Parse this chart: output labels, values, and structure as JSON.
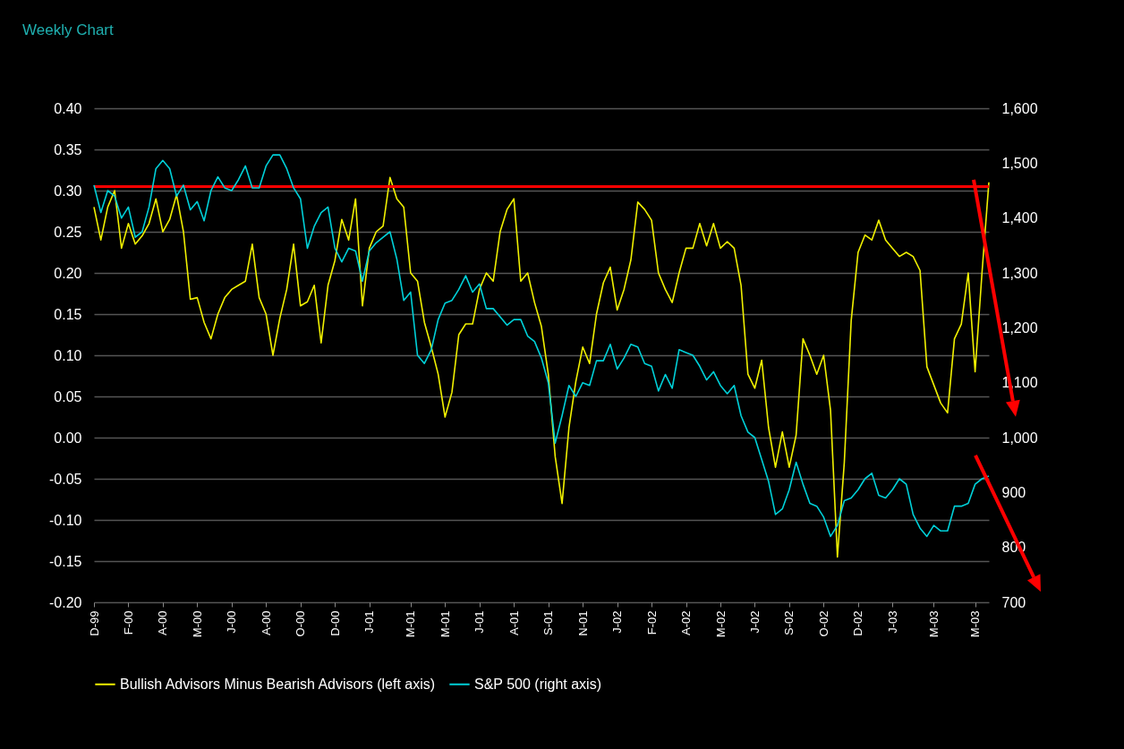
{
  "chart_data": {
    "type": "line",
    "title": "Weekly Chart",
    "categories": [
      "D-99",
      null,
      null,
      null,
      null,
      "F-00",
      null,
      null,
      null,
      null,
      "A-00",
      null,
      null,
      null,
      null,
      "M-00",
      null,
      null,
      null,
      null,
      "J-00",
      null,
      null,
      null,
      null,
      "A-00",
      null,
      null,
      null,
      null,
      "O-00",
      null,
      null,
      null,
      null,
      "D-00",
      null,
      null,
      null,
      null,
      "J-01",
      null,
      null,
      null,
      null,
      null,
      "M-01",
      null,
      null,
      null,
      null,
      "M-01",
      null,
      null,
      null,
      null,
      "J-01",
      null,
      null,
      null,
      null,
      "A-01",
      null,
      null,
      null,
      null,
      "S-01",
      null,
      null,
      null,
      null,
      "N-01",
      null,
      null,
      null,
      null,
      "J-02",
      null,
      null,
      null,
      null,
      "F-02",
      null,
      null,
      null,
      null,
      "A-02",
      null,
      null,
      null,
      null,
      "M-02",
      null,
      null,
      null,
      null,
      "J-02",
      null,
      null,
      null,
      null,
      "S-02",
      null,
      null,
      null,
      null,
      "O-02",
      null,
      null,
      null,
      null,
      "D-02",
      null,
      null,
      null,
      null,
      "J-03",
      null,
      null,
      null,
      null,
      null,
      "M-03",
      null,
      null,
      null,
      null,
      null,
      "M-03",
      null,
      null
    ],
    "series": [
      {
        "name": "Bullish Advisors Minus Bearish Advisors (left axis)",
        "color": "#f0f000",
        "values": [
          0.28,
          0.24,
          0.28,
          0.3,
          0.23,
          0.26,
          0.235,
          0.245,
          0.26,
          0.29,
          0.25,
          0.265,
          0.295,
          0.25,
          0.168,
          0.17,
          0.14,
          0.12,
          0.15,
          0.17,
          0.18,
          0.185,
          0.19,
          0.235,
          0.17,
          0.15,
          0.1,
          0.145,
          0.18,
          0.235,
          0.16,
          0.165,
          0.185,
          0.115,
          0.185,
          0.215,
          0.265,
          0.24,
          0.29,
          0.16,
          0.23,
          0.25,
          0.257,
          0.316,
          0.29,
          0.28,
          0.2,
          0.19,
          0.14,
          0.11,
          0.077,
          0.025,
          0.055,
          0.125,
          0.138,
          0.138,
          0.18,
          0.2,
          0.19,
          0.25,
          0.277,
          0.29,
          0.19,
          0.2,
          0.164,
          0.135,
          0.077,
          -0.023,
          -0.08,
          0.012,
          0.068,
          0.11,
          0.09,
          0.15,
          0.188,
          0.207,
          0.155,
          0.18,
          0.216,
          0.286,
          0.277,
          0.264,
          0.2,
          0.18,
          0.164,
          0.2,
          0.23,
          0.23,
          0.26,
          0.233,
          0.26,
          0.23,
          0.238,
          0.23,
          0.185,
          0.077,
          0.06,
          0.094,
          0.012,
          -0.036,
          0.007,
          -0.036,
          0.003,
          0.12,
          0.1,
          0.077,
          0.1,
          0.033,
          -0.145,
          -0.03,
          0.142,
          0.225,
          0.246,
          0.24,
          0.264,
          0.24,
          0.23,
          0.22,
          0.225,
          0.22,
          0.203,
          0.086,
          0.064,
          0.042,
          0.03,
          0.12,
          0.138,
          0.2,
          0.08,
          0.2,
          0.31
        ]
      },
      {
        "name": "S&P 500 (right axis)",
        "color": "#00d0d8",
        "axis": "y2",
        "values": [
          1460,
          1410,
          1450,
          1440,
          1400,
          1420,
          1365,
          1375,
          1420,
          1490,
          1505,
          1490,
          1440,
          1460,
          1415,
          1430,
          1395,
          1450,
          1475,
          1455,
          1450,
          1470,
          1495,
          1455,
          1455,
          1495,
          1515,
          1515,
          1490,
          1455,
          1435,
          1345,
          1385,
          1410,
          1420,
          1345,
          1320,
          1345,
          1340,
          1285,
          1340,
          1355,
          1365,
          1375,
          1325,
          1250,
          1265,
          1150,
          1135,
          1160,
          1215,
          1245,
          1250,
          1270,
          1295,
          1265,
          1280,
          1235,
          1235,
          1220,
          1205,
          1215,
          1215,
          1185,
          1175,
          1145,
          1100,
          990,
          1040,
          1095,
          1075,
          1100,
          1095,
          1140,
          1140,
          1170,
          1125,
          1145,
          1170,
          1165,
          1135,
          1130,
          1085,
          1115,
          1090,
          1160,
          1155,
          1150,
          1130,
          1105,
          1120,
          1095,
          1080,
          1095,
          1040,
          1010,
          1000,
          960,
          920,
          860,
          870,
          905,
          955,
          915,
          880,
          875,
          855,
          820,
          840,
          885,
          890,
          905,
          925,
          935,
          895,
          890,
          905,
          925,
          915,
          860,
          835,
          820,
          840,
          830,
          830,
          875,
          875,
          880,
          915,
          925,
          930
        ]
      }
    ],
    "ylim": [
      -0.2,
      0.4
    ],
    "yticks": [
      {
        "value": 0.4,
        "label": "0.40"
      },
      {
        "value": 0.35,
        "label": "0.35"
      },
      {
        "value": 0.3,
        "label": "0.30"
      },
      {
        "value": 0.25,
        "label": "0.25"
      },
      {
        "value": 0.2,
        "label": "0.20"
      },
      {
        "value": 0.15,
        "label": "0.15"
      },
      {
        "value": 0.1,
        "label": "0.10"
      },
      {
        "value": 0.05,
        "label": "0.05"
      },
      {
        "value": 0,
        "label": "0.00"
      },
      {
        "value": -0.05,
        "label": "-0.05"
      },
      {
        "value": -0.1,
        "label": "-0.10"
      },
      {
        "value": -0.15,
        "label": "-0.15"
      },
      {
        "value": -0.2,
        "label": "-0.20"
      }
    ],
    "y2lim": [
      700,
      1600
    ],
    "y2ticks": [
      {
        "value": 1600,
        "label": "1,600"
      },
      {
        "value": 1500,
        "label": "1,500"
      },
      {
        "value": 1400,
        "label": "1,400"
      },
      {
        "value": 1300,
        "label": "1,300"
      },
      {
        "value": 1200,
        "label": "1,200"
      },
      {
        "value": 1100,
        "label": "1,100"
      },
      {
        "value": 1000,
        "label": "1,000"
      },
      {
        "value": 900,
        "label": "900"
      },
      {
        "value": 800,
        "label": "800"
      },
      {
        "value": 700,
        "label": "700"
      }
    ],
    "ref_lines": [
      {
        "axis": "y",
        "value": 0.305,
        "color": "#ff0000"
      }
    ],
    "grid": "y",
    "legend": "bottom"
  }
}
